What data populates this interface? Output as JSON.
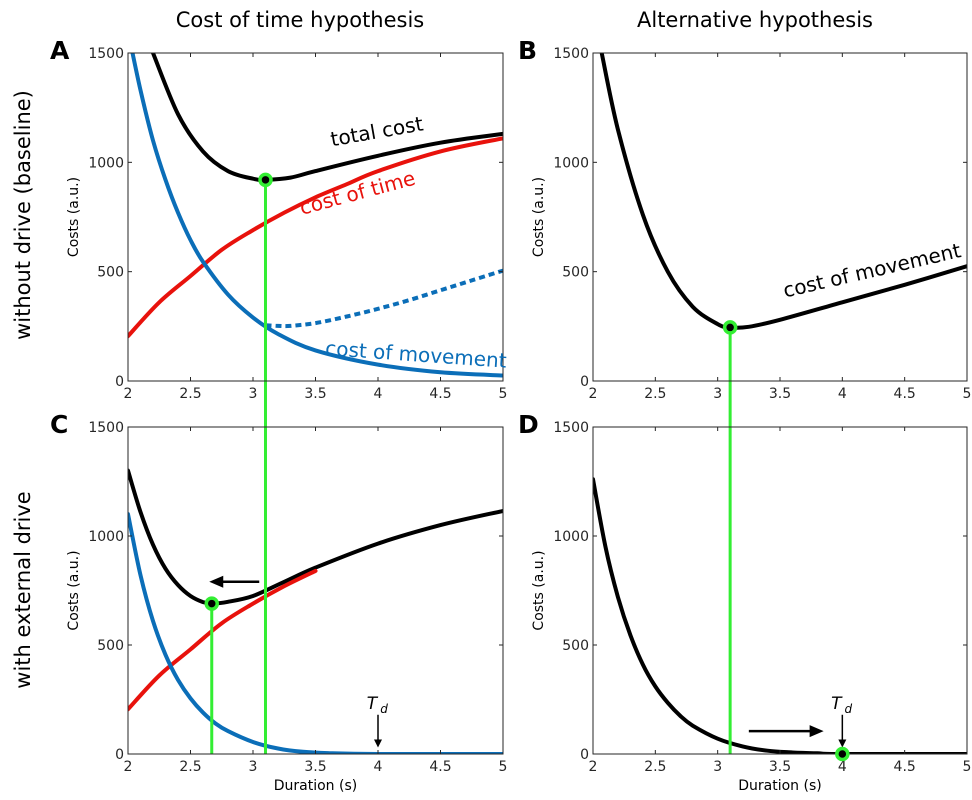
{
  "column_titles": [
    "Cost of time hypothesis",
    "Alternative hypothesis"
  ],
  "row_titles": [
    "without drive (baseline)",
    "with external drive"
  ],
  "colors": {
    "total": "#000000",
    "cost_of_time": "#e8120c",
    "movement": "#0b6eb8",
    "optimum": "#33ee33"
  },
  "chart_data": [
    {
      "panel": "A",
      "type": "line",
      "xlabel": "",
      "ylabel": "Costs (a.u.)",
      "xlim": [
        2,
        5
      ],
      "ylim": [
        0,
        1500
      ],
      "xticks": [
        2,
        2.5,
        3,
        3.5,
        4,
        4.5,
        5
      ],
      "xtick_labels": [
        "2",
        "2.5",
        "3",
        "3.5",
        "4",
        "4.5",
        "5"
      ],
      "yticks": [
        0,
        500,
        1000,
        1500
      ],
      "ytick_labels": [
        "0",
        "500",
        "1000",
        "1500"
      ],
      "series": [
        {
          "name": "total cost",
          "color": "#000000",
          "dashed": false,
          "x": [
            2.2,
            2.4,
            2.6,
            2.8,
            3.0,
            3.1,
            3.3,
            3.5,
            4.0,
            4.5,
            5.0
          ],
          "y": [
            1500,
            1220,
            1050,
            960,
            925,
            920,
            930,
            960,
            1030,
            1090,
            1130
          ]
        },
        {
          "name": "cost of time",
          "color": "#e8120c",
          "dashed": false,
          "x": [
            2.0,
            2.25,
            2.5,
            2.75,
            3.0,
            3.25,
            3.5,
            3.75,
            4.0,
            4.5,
            5.0
          ],
          "y": [
            205,
            360,
            480,
            600,
            690,
            770,
            840,
            900,
            960,
            1050,
            1110
          ]
        },
        {
          "name": "cost of movement",
          "color": "#0b6eb8",
          "dashed": false,
          "x": [
            2.0,
            2.1,
            2.2,
            2.3,
            2.4,
            2.5,
            2.6,
            2.8,
            3.0,
            3.2,
            3.5,
            4.0,
            4.5,
            5.0
          ],
          "y": [
            1600,
            1330,
            1100,
            920,
            770,
            645,
            545,
            395,
            290,
            215,
            140,
            75,
            40,
            25
          ]
        },
        {
          "name": "",
          "color": "#0b6eb8",
          "dashed": true,
          "x": [
            3.1,
            3.2,
            3.3,
            3.5,
            3.75,
            4.0,
            4.25,
            4.5,
            4.75,
            5.0
          ],
          "y": [
            255,
            252,
            252,
            265,
            295,
            330,
            370,
            415,
            460,
            505
          ]
        }
      ],
      "optimum": {
        "x": 3.1,
        "y": 920
      },
      "labels": [
        {
          "text": "total cost",
          "x": 4.0,
          "y": 1110,
          "color": "#000000",
          "rotate": -10
        },
        {
          "text": "cost of time",
          "x": 3.85,
          "y": 830,
          "color": "#e8120c",
          "rotate": -15
        },
        {
          "text": "cost of movement",
          "x": 4.3,
          "y": 90,
          "color": "#0b6eb8",
          "rotate": 4
        }
      ]
    },
    {
      "panel": "B",
      "type": "line",
      "xlabel": "",
      "ylabel": "Costs (a.u.)",
      "xlim": [
        2,
        5
      ],
      "ylim": [
        0,
        1500
      ],
      "xticks": [
        2,
        2.5,
        3,
        3.5,
        4,
        4.5,
        5
      ],
      "xtick_labels": [
        "2",
        "2.5",
        "3",
        "3.5",
        "4",
        "4.5",
        "5"
      ],
      "yticks": [
        0,
        500,
        1000,
        1500
      ],
      "ytick_labels": [
        "0",
        "500",
        "1000",
        "1500"
      ],
      "series": [
        {
          "name": "cost of movement",
          "color": "#000000",
          "dashed": false,
          "x": [
            2.07,
            2.2,
            2.4,
            2.6,
            2.8,
            3.0,
            3.1,
            3.25,
            3.5,
            4.0,
            4.5,
            5.0
          ],
          "y": [
            1500,
            1150,
            760,
            500,
            340,
            260,
            245,
            248,
            280,
            360,
            440,
            525
          ]
        }
      ],
      "optimum": {
        "x": 3.1,
        "y": 245
      },
      "labels": [
        {
          "text": "cost of movement",
          "x": 4.25,
          "y": 475,
          "color": "#000000",
          "rotate": -13
        }
      ]
    },
    {
      "panel": "C",
      "type": "line",
      "xlabel": "Duration (s)",
      "ylabel": "Costs (a.u.)",
      "xlim": [
        2,
        5
      ],
      "ylim": [
        0,
        1500
      ],
      "xticks": [
        2,
        2.5,
        3,
        3.5,
        4,
        4.5,
        5
      ],
      "xtick_labels": [
        "2",
        "2.5",
        "3",
        "3.5",
        "4",
        "4.5",
        "5"
      ],
      "yticks": [
        0,
        500,
        1000,
        1500
      ],
      "ytick_labels": [
        "0",
        "500",
        "1000",
        "1500"
      ],
      "series": [
        {
          "name": "total cost",
          "color": "#000000",
          "dashed": false,
          "x": [
            2.0,
            2.1,
            2.2,
            2.3,
            2.4,
            2.5,
            2.6,
            2.68,
            2.8,
            3.0,
            3.25,
            3.5,
            4.0,
            4.5,
            5.0
          ],
          "y": [
            1300,
            1110,
            960,
            850,
            775,
            725,
            697,
            690,
            698,
            725,
            790,
            855,
            965,
            1050,
            1115
          ]
        },
        {
          "name": "cost of time",
          "color": "#e8120c",
          "dashed": false,
          "x": [
            2.0,
            2.25,
            2.5,
            2.75,
            3.0,
            3.25,
            3.5
          ],
          "y": [
            205,
            360,
            480,
            600,
            690,
            770,
            840
          ]
        },
        {
          "name": "cost of movement",
          "color": "#0b6eb8",
          "dashed": false,
          "x": [
            2.0,
            2.1,
            2.2,
            2.3,
            2.4,
            2.5,
            2.6,
            2.7,
            2.8,
            3.0,
            3.2,
            3.4,
            3.6,
            4.0,
            5.0
          ],
          "y": [
            1100,
            820,
            610,
            455,
            340,
            255,
            190,
            140,
            105,
            55,
            25,
            10,
            4,
            0,
            0
          ]
        }
      ],
      "optimum": {
        "x": 2.67,
        "y": 690
      },
      "reference_line_x": 3.1,
      "arrows": [
        {
          "x1": 3.05,
          "y1": 790,
          "x2": 2.65,
          "y2": 790
        }
      ],
      "td_marker": {
        "label": "T",
        "subscript": "d",
        "x": 4.0,
        "y_top": 180,
        "y_bottom": 30
      }
    },
    {
      "panel": "D",
      "type": "line",
      "xlabel": "Duration (s)",
      "ylabel": "Costs (a.u.)",
      "xlim": [
        2,
        5
      ],
      "ylim": [
        0,
        1500
      ],
      "xticks": [
        2,
        2.5,
        3,
        3.5,
        4,
        4.5,
        5
      ],
      "xtick_labels": [
        "2",
        "2.5",
        "3",
        "3.5",
        "4",
        "4.5",
        "5"
      ],
      "yticks": [
        0,
        500,
        1000,
        1500
      ],
      "ytick_labels": [
        "0",
        "500",
        "1000",
        "1500"
      ],
      "series": [
        {
          "name": "cost of movement",
          "color": "#000000",
          "dashed": false,
          "x": [
            2.0,
            2.1,
            2.2,
            2.3,
            2.4,
            2.5,
            2.6,
            2.7,
            2.8,
            3.0,
            3.2,
            3.4,
            3.6,
            3.8,
            4.0,
            5.0
          ],
          "y": [
            1260,
            950,
            720,
            545,
            410,
            310,
            235,
            175,
            130,
            70,
            35,
            15,
            7,
            3,
            0,
            0
          ]
        }
      ],
      "optimum": {
        "x": 4.0,
        "y": 0
      },
      "reference_line_x": 3.1,
      "arrows": [
        {
          "x1": 3.25,
          "y1": 105,
          "x2": 3.85,
          "y2": 105
        }
      ],
      "td_marker": {
        "label": "T",
        "subscript": "d",
        "x": 4.0,
        "y_top": 180,
        "y_bottom": 30
      }
    }
  ]
}
